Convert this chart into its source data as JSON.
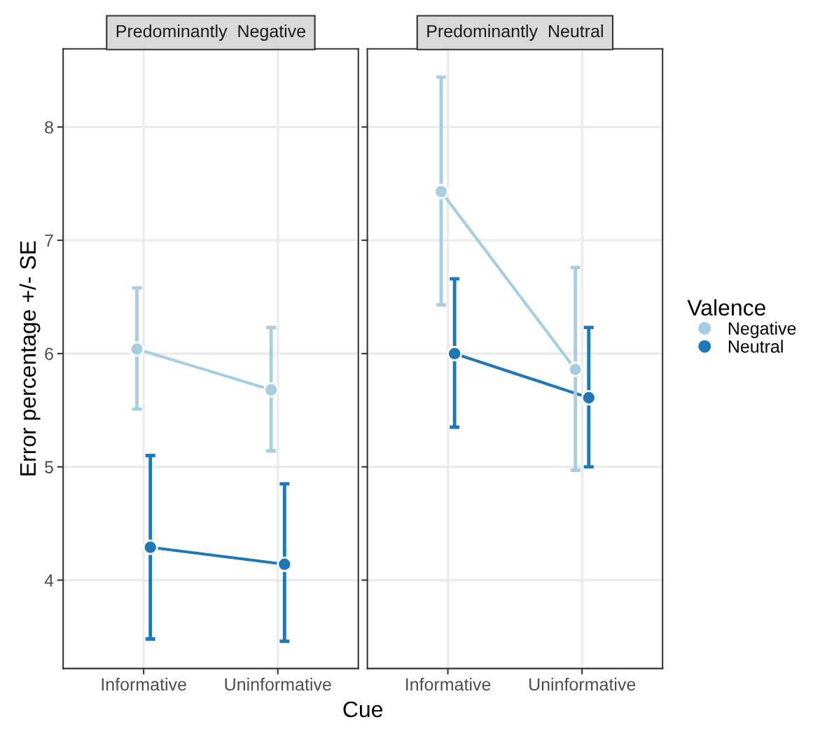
{
  "chart_data": [
    {
      "type": "line",
      "title": "Predominantly  Negative",
      "xlabel": "Cue",
      "ylabel": "Error percentage +/- SE",
      "categories": [
        "Informative",
        "Uninformative"
      ],
      "series": [
        {
          "color": "#a6cee3",
          "values": [
            6.04,
            5.68
          ],
          "errors": [
            [
              5.51,
              6.58
            ],
            [
              5.14,
              6.23
            ]
          ]
        },
        {
          "color": "#1f78b4",
          "values": [
            4.29,
            4.14
          ],
          "errors": [
            [
              3.48,
              5.1
            ],
            [
              3.46,
              4.85
            ]
          ]
        }
      ],
      "ylim": [
        3.22,
        8.69
      ],
      "yticks": [
        4,
        5,
        6,
        7,
        8
      ],
      "grid": true,
      "marker": "circle",
      "line_style": "solid"
    },
    {
      "type": "line",
      "title": "Predominantly  Neutral",
      "categories": [
        "Informative",
        "Uninformative"
      ],
      "series": [
        {
          "name": "Negative",
          "color": "#a6cee3",
          "values": [
            7.43,
            5.86
          ],
          "errors": [
            [
              6.43,
              8.44
            ],
            [
              4.97,
              6.76
            ]
          ]
        },
        {
          "name": "Neutral",
          "color": "#1f78b4",
          "values": [
            6.0,
            5.61
          ],
          "errors": [
            [
              5.35,
              6.66
            ],
            [
              5.0,
              6.23
            ]
          ]
        }
      ],
      "ylim": [
        3.22,
        8.69
      ],
      "yticks": [
        4,
        5,
        6,
        7,
        8
      ],
      "grid": true,
      "marker": "circle",
      "line_style": "solid",
      "legend": "right",
      "legend_title": "Valence",
      "tick_labels": "x"
    }
  ]
}
